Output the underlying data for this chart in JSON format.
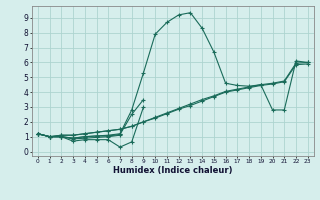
{
  "title": "",
  "xlabel": "Humidex (Indice chaleur)",
  "xlim": [
    -0.5,
    23.5
  ],
  "ylim": [
    -0.3,
    9.8
  ],
  "xticks": [
    0,
    1,
    2,
    3,
    4,
    5,
    6,
    7,
    8,
    9,
    10,
    11,
    12,
    13,
    14,
    15,
    16,
    17,
    18,
    19,
    20,
    21,
    22,
    23
  ],
  "yticks": [
    0,
    1,
    2,
    3,
    4,
    5,
    6,
    7,
    8,
    9
  ],
  "background_color": "#d6eeec",
  "grid_color": "#aed4d0",
  "line_color": "#1a6b5a",
  "series": [
    {
      "x": [
        0,
        1,
        2,
        3,
        4,
        5,
        6,
        7,
        8,
        9,
        10,
        11,
        12,
        13,
        14,
        15,
        16,
        17,
        18,
        19,
        20,
        21,
        22,
        23
      ],
      "y": [
        1.2,
        1.0,
        1.0,
        0.7,
        0.8,
        0.8,
        0.8,
        0.3,
        0.65,
        3.0,
        null,
        null,
        null,
        null,
        null,
        null,
        null,
        null,
        null,
        null,
        null,
        null,
        null,
        null
      ]
    },
    {
      "x": [
        0,
        1,
        2,
        3,
        4,
        5,
        6,
        7,
        8,
        9,
        10,
        11,
        12,
        13,
        14,
        15,
        16,
        17,
        18,
        19,
        20,
        21,
        22,
        23
      ],
      "y": [
        1.2,
        1.0,
        1.0,
        0.85,
        0.9,
        0.95,
        1.0,
        1.1,
        null,
        null,
        null,
        null,
        null,
        null,
        null,
        null,
        null,
        null,
        null,
        null,
        null,
        null,
        null,
        null
      ]
    },
    {
      "x": [
        0,
        1,
        2,
        3,
        4,
        5,
        6,
        7,
        8,
        9,
        10,
        11,
        12,
        13,
        14,
        15,
        16,
        17,
        18,
        19,
        20,
        21,
        22,
        23
      ],
      "y": [
        1.2,
        1.0,
        1.0,
        0.9,
        1.0,
        1.05,
        1.05,
        1.15,
        2.5,
        3.5,
        null,
        null,
        null,
        null,
        null,
        null,
        null,
        null,
        null,
        null,
        null,
        null,
        null,
        null
      ]
    },
    {
      "x": [
        0,
        1,
        2,
        3,
        4,
        5,
        6,
        7,
        8,
        9,
        10,
        11,
        12,
        13,
        14,
        15,
        16,
        17,
        18,
        19,
        20,
        21,
        22,
        23
      ],
      "y": [
        1.2,
        1.0,
        1.0,
        0.9,
        1.0,
        1.05,
        1.1,
        1.2,
        2.8,
        5.3,
        7.9,
        8.7,
        9.2,
        9.35,
        8.3,
        6.7,
        4.6,
        4.45,
        4.4,
        4.5,
        2.8,
        2.8,
        6.1,
        6.0
      ]
    },
    {
      "x": [
        0,
        1,
        2,
        3,
        4,
        5,
        6,
        7,
        8,
        9,
        10,
        11,
        12,
        13,
        14,
        15,
        16,
        17,
        18,
        19,
        20,
        21,
        22,
        23
      ],
      "y": [
        1.2,
        1.0,
        1.1,
        1.1,
        1.2,
        1.3,
        1.4,
        1.5,
        1.7,
        2.0,
        2.3,
        2.6,
        2.9,
        3.2,
        3.5,
        3.75,
        4.05,
        4.2,
        4.35,
        4.5,
        4.6,
        4.75,
        5.95,
        6.0
      ]
    },
    {
      "x": [
        0,
        1,
        2,
        3,
        4,
        5,
        6,
        7,
        8,
        9,
        10,
        11,
        12,
        13,
        14,
        15,
        16,
        17,
        18,
        19,
        20,
        21,
        22,
        23
      ],
      "y": [
        1.2,
        1.0,
        1.1,
        1.1,
        1.2,
        1.3,
        1.4,
        1.5,
        1.7,
        2.0,
        2.25,
        2.55,
        2.85,
        3.1,
        3.4,
        3.7,
        4.0,
        4.15,
        4.3,
        4.45,
        4.55,
        4.7,
        5.85,
        5.9
      ]
    }
  ]
}
